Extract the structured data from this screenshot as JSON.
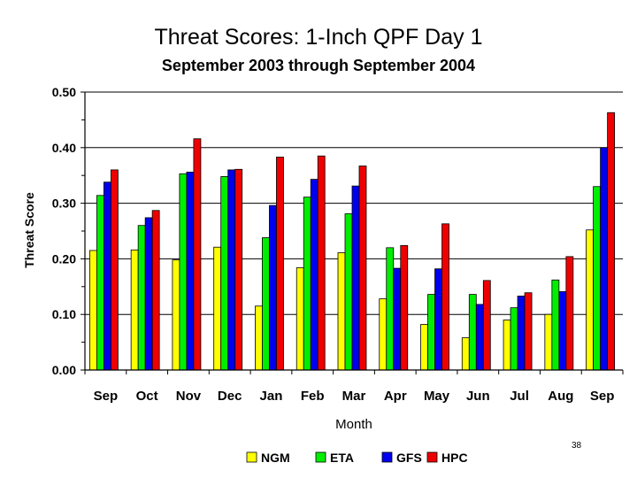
{
  "slide": {
    "page_number": "38"
  },
  "chart_data": {
    "type": "bar",
    "title": "Threat Scores:  1-Inch QPF Day 1",
    "subtitle": "September 2003 through September 2004",
    "xlabel": "Month",
    "ylabel": "Threat Score",
    "ylim": [
      0,
      0.5
    ],
    "yticks": [
      "0.00",
      "0.10",
      "0.20",
      "0.30",
      "0.40",
      "0.50"
    ],
    "grid": "horizontal",
    "legend_position": "bottom",
    "categories": [
      "Sep",
      "Oct",
      "Nov",
      "Dec",
      "Jan",
      "Feb",
      "Mar",
      "Apr",
      "May",
      "Jun",
      "Jul",
      "Aug",
      "Sep"
    ],
    "series": [
      {
        "name": "NGM",
        "color": "#ffff00",
        "values": [
          0.215,
          0.216,
          0.198,
          0.221,
          0.115,
          0.184,
          0.211,
          0.128,
          0.082,
          0.058,
          0.09,
          0.1,
          0.252
        ]
      },
      {
        "name": "ETA",
        "color": "#00ee00",
        "values": [
          0.314,
          0.26,
          0.353,
          0.348,
          0.238,
          0.311,
          0.281,
          0.22,
          0.136,
          0.136,
          0.112,
          0.162,
          0.33
        ]
      },
      {
        "name": "GFS",
        "color": "#0000ee",
        "values": [
          0.338,
          0.274,
          0.356,
          0.36,
          0.296,
          0.343,
          0.331,
          0.183,
          0.182,
          0.118,
          0.133,
          0.141,
          0.4
        ]
      },
      {
        "name": "HPC",
        "color": "#ee0000",
        "values": [
          0.36,
          0.287,
          0.416,
          0.361,
          0.383,
          0.385,
          0.367,
          0.224,
          0.263,
          0.161,
          0.139,
          0.204,
          0.463
        ]
      }
    ]
  }
}
